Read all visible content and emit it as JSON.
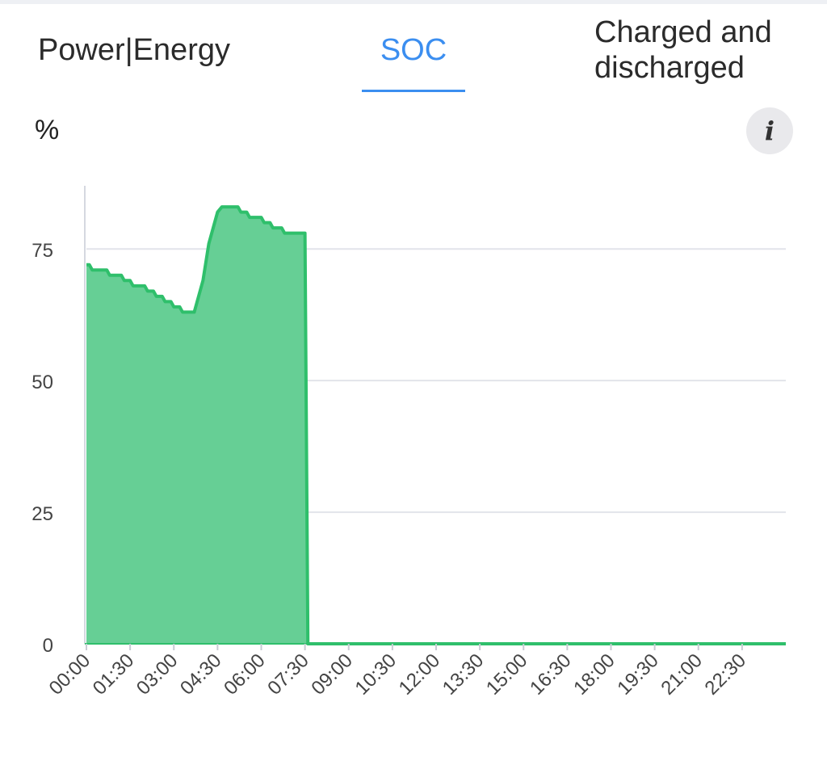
{
  "tabs": {
    "power": "Power|Energy",
    "soc": "SOC",
    "charged": "Charged and discharged",
    "active": "soc"
  },
  "chart_header": {
    "unit": "%",
    "info_icon": "info-icon",
    "info_glyph": "i"
  },
  "colors": {
    "accent": "#3b8ef0",
    "series_line": "#2fbf6b",
    "series_fill": "#66cf95",
    "grid": "#e2e4ea"
  },
  "chart_data": {
    "type": "area",
    "title": "",
    "xlabel": "",
    "ylabel": "%",
    "ylim": [
      0,
      87
    ],
    "yticks": [
      0,
      25,
      50,
      75
    ],
    "xlim": [
      0,
      24
    ],
    "xtick_labels": [
      "00:00",
      "01:30",
      "03:00",
      "04:30",
      "06:00",
      "07:30",
      "09:00",
      "10:30",
      "12:00",
      "13:30",
      "15:00",
      "16:30",
      "18:00",
      "19:30",
      "21:00",
      "22:30"
    ],
    "grid": true,
    "series": [
      {
        "x": [
          0,
          0.1,
          0.2,
          0.7,
          0.8,
          1.2,
          1.3,
          1.5,
          1.6,
          2.0,
          2.1,
          2.3,
          2.4,
          2.6,
          2.7,
          2.9,
          3.0,
          3.2,
          3.3,
          3.6,
          3.7,
          4.0,
          4.2,
          4.5,
          4.65,
          4.75,
          4.8,
          5.2,
          5.3,
          5.5,
          5.6,
          6.0,
          6.1,
          6.3,
          6.4,
          6.7,
          6.8,
          7.0,
          7.1,
          7.5,
          7.6,
          7.65,
          24.0
        ],
        "y": [
          72,
          72,
          71,
          71,
          70,
          70,
          69,
          69,
          68,
          68,
          67,
          67,
          66,
          66,
          65,
          65,
          64,
          64,
          63,
          63,
          63,
          69,
          76,
          82,
          83,
          83,
          83,
          83,
          82,
          82,
          81,
          81,
          80,
          80,
          79,
          79,
          78,
          78,
          78,
          78,
          0,
          0,
          0
        ]
      }
    ]
  }
}
